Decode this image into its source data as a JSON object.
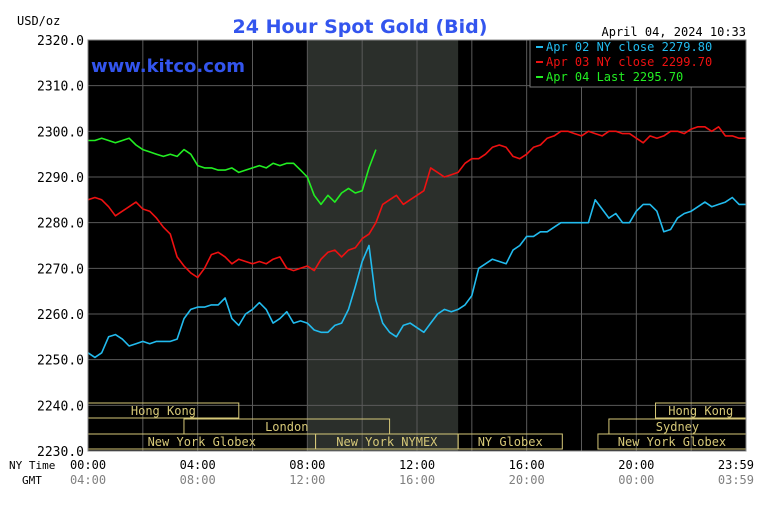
{
  "chart_data": {
    "type": "line",
    "title": "24 Hour Spot Gold (Bid)",
    "watermark": "www.kitco.com",
    "timestamp": "April 04, 2024 10:33",
    "ylabel": "USD/oz",
    "ylim": [
      2230,
      2320
    ],
    "yticks": [
      "2320.0",
      "2310.0",
      "2300.0",
      "2290.0",
      "2280.0",
      "2270.0",
      "2260.0",
      "2250.0",
      "2240.0",
      "2230.0"
    ],
    "xlim": [
      0,
      24
    ],
    "row_labels": {
      "ny": "NY Time",
      "gmt": "GMT"
    },
    "xticks_ny": [
      "00:00",
      "04:00",
      "08:00",
      "12:00",
      "16:00",
      "20:00",
      "23:59"
    ],
    "xticks_gmt": [
      "04:00",
      "08:00",
      "12:00",
      "16:00",
      "20:00",
      "00:00",
      "03:59"
    ],
    "grid": true,
    "legend_position": "top-right",
    "colors": {
      "background": "#000000",
      "grid": "#5a5a5a",
      "highlight": "#2b2f2b",
      "axis_text": "#000000",
      "title": "#3355ee",
      "sessions": "#d6c878"
    },
    "highlight_x": [
      8,
      13.5
    ],
    "legend": [
      "Apr 02 NY close 2279.80",
      "Apr 03 NY close 2299.70",
      "Apr 04 Last 2295.70"
    ],
    "sessions": [
      {
        "label": "Hong Kong",
        "start": 0,
        "end": 5.5,
        "row": 0
      },
      {
        "label": "London",
        "start": 3.5,
        "end": 11,
        "row": 1
      },
      {
        "label": "New York Globex",
        "start": 0,
        "end": 8.3,
        "row": 2
      },
      {
        "label": "New York NYMEX",
        "start": 8.3,
        "end": 13.5,
        "row": 2
      },
      {
        "label": "NY Globex",
        "start": 13.5,
        "end": 17.3,
        "row": 2
      },
      {
        "label": "Hong Kong",
        "start": 20.7,
        "end": 24,
        "row": 0
      },
      {
        "label": "Sydney",
        "start": 19,
        "end": 24,
        "row": 1
      },
      {
        "label": "New York Globex",
        "start": 18.6,
        "end": 24,
        "row": 2
      }
    ],
    "series": [
      {
        "name": "Apr 02",
        "color": "#22bbee",
        "x": [
          0,
          0.25,
          0.5,
          0.75,
          1,
          1.25,
          1.5,
          1.75,
          2,
          2.25,
          2.5,
          2.75,
          3,
          3.25,
          3.5,
          3.75,
          4,
          4.25,
          4.5,
          4.75,
          5,
          5.25,
          5.5,
          5.75,
          6,
          6.25,
          6.5,
          6.75,
          7,
          7.25,
          7.5,
          7.75,
          8,
          8.25,
          8.5,
          8.75,
          9,
          9.25,
          9.5,
          9.75,
          10,
          10.25,
          10.5,
          10.75,
          11,
          11.25,
          11.5,
          11.75,
          12,
          12.25,
          12.5,
          12.75,
          13,
          13.25,
          13.5,
          13.75,
          14,
          14.25,
          14.5,
          14.75,
          15,
          15.25,
          15.5,
          15.75,
          16,
          16.25,
          16.5,
          16.75,
          17,
          17.25,
          17.5,
          17.75,
          18,
          18.25,
          18.5,
          18.75,
          19,
          19.25,
          19.5,
          19.75,
          20,
          20.25,
          20.5,
          20.75,
          21,
          21.25,
          21.5,
          21.75,
          22,
          22.25,
          22.5,
          22.75,
          23,
          23.25,
          23.5,
          23.75,
          24
        ],
        "y": [
          2251.5,
          2250.5,
          2251.5,
          2255,
          2255.5,
          2254.5,
          2253,
          2253.5,
          2254,
          2253.5,
          2254,
          2254,
          2254,
          2254.5,
          2259,
          2261,
          2261.5,
          2261.5,
          2262,
          2262,
          2263.5,
          2259,
          2257.5,
          2260,
          2261,
          2262.5,
          2261,
          2258,
          2259,
          2260.5,
          2258,
          2258.5,
          2258,
          2256.5,
          2256,
          2256,
          2257.5,
          2258,
          2261,
          2266,
          2271.5,
          2275,
          2263,
          2258,
          2256,
          2255,
          2257.5,
          2258,
          2257,
          2256,
          2258,
          2260,
          2261,
          2260.5,
          2261,
          2262,
          2264,
          2270,
          2271,
          2272,
          2271.5,
          2271,
          2274,
          2275,
          2277,
          2277,
          2278,
          2278,
          2279,
          2280,
          2280,
          2280,
          2280,
          2280,
          2285,
          2283,
          2281,
          2282,
          2280,
          2280,
          2282.5,
          2284,
          2284,
          2282.5,
          2278,
          2278.5,
          2281,
          2282,
          2282.5,
          2283.5,
          2284.5,
          2283.5,
          2284,
          2284.5,
          2285.5,
          2284,
          2284
        ]
      },
      {
        "name": "Apr 03",
        "color": "#ee1111",
        "x": [
          0,
          0.25,
          0.5,
          0.75,
          1,
          1.25,
          1.5,
          1.75,
          2,
          2.25,
          2.5,
          2.75,
          3,
          3.25,
          3.5,
          3.75,
          4,
          4.25,
          4.5,
          4.75,
          5,
          5.25,
          5.5,
          5.75,
          6,
          6.25,
          6.5,
          6.75,
          7,
          7.25,
          7.5,
          7.75,
          8,
          8.25,
          8.5,
          8.75,
          9,
          9.25,
          9.5,
          9.75,
          10,
          10.25,
          10.5,
          10.75,
          11,
          11.25,
          11.5,
          11.75,
          12,
          12.25,
          12.5,
          12.75,
          13,
          13.25,
          13.5,
          13.75,
          14,
          14.25,
          14.5,
          14.75,
          15,
          15.25,
          15.5,
          15.75,
          16,
          16.25,
          16.5,
          16.75,
          17,
          17.25,
          17.5,
          17.75,
          18,
          18.25,
          18.5,
          18.75,
          19,
          19.25,
          19.5,
          19.75,
          20,
          20.25,
          20.5,
          20.75,
          21,
          21.25,
          21.5,
          21.75,
          22,
          22.25,
          22.5,
          22.75,
          23,
          23.25,
          23.5,
          23.75,
          24
        ],
        "y": [
          2285,
          2285.5,
          2285,
          2283.5,
          2281.5,
          2282.5,
          2283.5,
          2284.5,
          2283,
          2282.5,
          2281,
          2279,
          2277.5,
          2272.5,
          2270.5,
          2269,
          2268,
          2270,
          2273,
          2273.5,
          2272.5,
          2271,
          2272,
          2271.5,
          2271,
          2271.5,
          2271,
          2272,
          2272.5,
          2270,
          2269.5,
          2270,
          2270.5,
          2269.5,
          2272,
          2273.5,
          2274,
          2272.5,
          2274,
          2274.5,
          2276.5,
          2277.5,
          2280,
          2284,
          2285,
          2286,
          2284,
          2285,
          2286,
          2287,
          2292,
          2291,
          2290,
          2290.5,
          2291,
          2293,
          2294,
          2294,
          2295,
          2296.5,
          2297,
          2296.5,
          2294.5,
          2294,
          2295,
          2296.5,
          2297,
          2298.5,
          2299,
          2300,
          2300,
          2299.5,
          2299,
          2300,
          2299.5,
          2299,
          2300,
          2300,
          2299.5,
          2299.5,
          2298.5,
          2297.5,
          2299,
          2298.5,
          2299,
          2300,
          2300,
          2299.5,
          2300.5,
          2301,
          2301,
          2300,
          2301,
          2299,
          2299,
          2298.5,
          2298.5
        ]
      },
      {
        "name": "Apr 04",
        "color": "#22ee22",
        "x": [
          0,
          0.25,
          0.5,
          0.75,
          1,
          1.25,
          1.5,
          1.75,
          2,
          2.25,
          2.5,
          2.75,
          3,
          3.25,
          3.5,
          3.75,
          4,
          4.25,
          4.5,
          4.75,
          5,
          5.25,
          5.5,
          5.75,
          6,
          6.25,
          6.5,
          6.75,
          7,
          7.25,
          7.5,
          7.75,
          8,
          8.25,
          8.5,
          8.75,
          9,
          9.25,
          9.5,
          9.75,
          10,
          10.25,
          10.5
        ],
        "y": [
          2298,
          2298,
          2298.5,
          2298,
          2297.5,
          2298,
          2298.5,
          2297,
          2296,
          2295.5,
          2295,
          2294.5,
          2295,
          2294.5,
          2296,
          2295,
          2292.5,
          2292,
          2292,
          2291.5,
          2291.5,
          2292,
          2291,
          2291.5,
          2292,
          2292.5,
          2292,
          2293,
          2292.5,
          2293,
          2293,
          2291.5,
          2290,
          2286,
          2284,
          2286,
          2284.5,
          2286.5,
          2287.5,
          2286.5,
          2287,
          2292,
          2296
        ]
      }
    ]
  }
}
